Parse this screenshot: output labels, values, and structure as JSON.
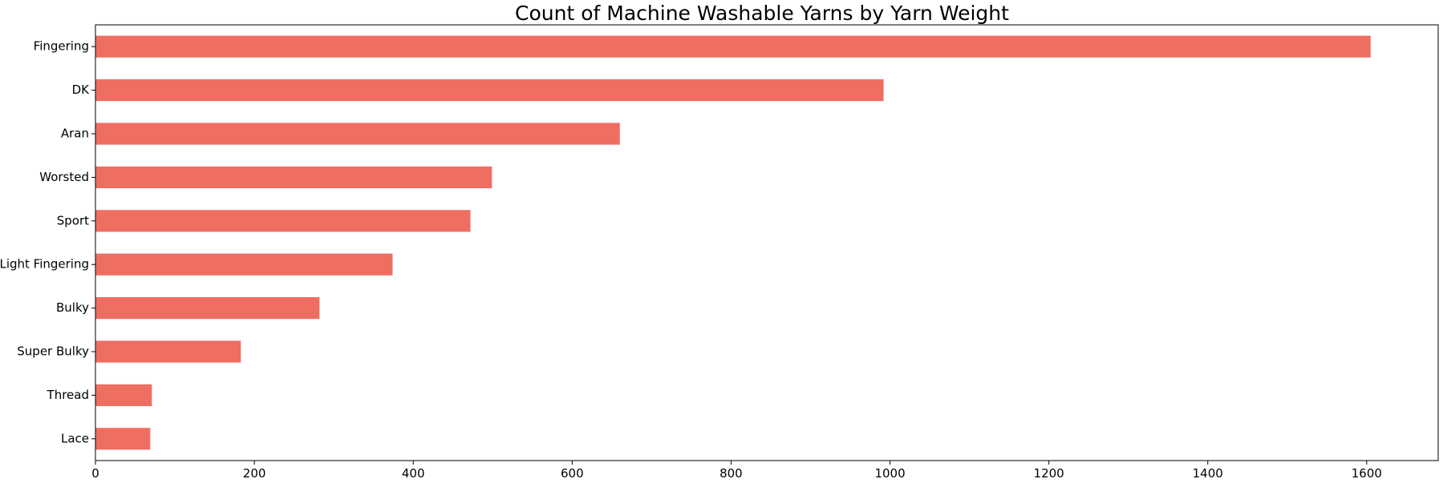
{
  "chart_data": {
    "type": "bar",
    "orientation": "horizontal",
    "title": "Count of Machine Washable Yarns by Yarn Weight",
    "xlabel": "",
    "ylabel": "",
    "categories": [
      "Fingering",
      "DK",
      "Aran",
      "Worsted",
      "Sport",
      "Light Fingering",
      "Bulky",
      "Super Bulky",
      "Thread",
      "Lace"
    ],
    "values": [
      1605,
      992,
      660,
      499,
      472,
      374,
      282,
      183,
      71,
      69
    ],
    "xlim": [
      0,
      1690
    ],
    "xticks": [
      0,
      200,
      400,
      600,
      800,
      1000,
      1200,
      1400,
      1600
    ],
    "grid": false,
    "legend": "none",
    "bar_color": "#ef6e62"
  }
}
